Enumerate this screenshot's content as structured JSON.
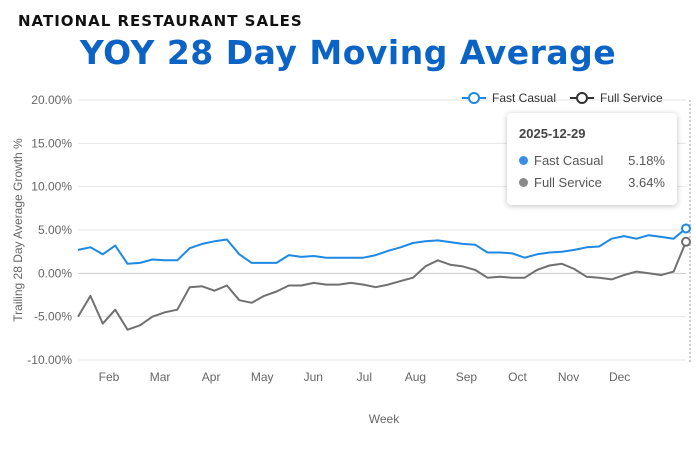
{
  "header": {
    "eyebrow": "NATIONAL RESTAURANT SALES",
    "title": "YOY 28 Day Moving Average"
  },
  "colors": {
    "fast_casual": "#1e88e5",
    "full_service": "#707070",
    "title": "#0b63c6",
    "gridline": "#e6e6e6"
  },
  "tooltip": {
    "date": "2025-12-29",
    "rows": [
      {
        "name": "Fast Casual",
        "value": "5.18%",
        "color": "#3b8ee6"
      },
      {
        "name": "Full Service",
        "value": "3.64%",
        "color": "#8a8a8a"
      }
    ]
  },
  "chart_data": {
    "type": "line",
    "xlabel": "Week",
    "ylabel": "Trailing 28 Day Average Growth %",
    "ylim": [
      -10,
      20
    ],
    "y_ticks": [
      20,
      15,
      10,
      5,
      0,
      -5,
      -10
    ],
    "y_tick_labels": [
      "20.00%",
      "15.00%",
      "10.00%",
      "5.00%",
      "0.00%",
      "-5.00%",
      "-10.00%"
    ],
    "month_labels": [
      "Feb",
      "Mar",
      "Apr",
      "May",
      "Jun",
      "Jul",
      "Aug",
      "Sep",
      "Oct",
      "Nov",
      "Dec"
    ],
    "legend_position": "top-right",
    "x_weeks_start": 0,
    "series": [
      {
        "name": "Fast Casual",
        "values": [
          2.7,
          3.0,
          2.2,
          3.2,
          1.1,
          1.2,
          1.6,
          1.5,
          1.5,
          2.9,
          3.4,
          3.7,
          3.9,
          2.2,
          1.2,
          1.2,
          1.2,
          2.1,
          1.9,
          2.0,
          1.8,
          1.8,
          1.8,
          1.8,
          2.1,
          2.6,
          3.0,
          3.5,
          3.7,
          3.8,
          3.6,
          3.4,
          3.3,
          2.4,
          2.4,
          2.3,
          1.8,
          2.2,
          2.4,
          2.5,
          2.7,
          3.0,
          3.1,
          4.0,
          4.3,
          4.0,
          4.4,
          4.2,
          4.0,
          5.18
        ]
      },
      {
        "name": "Full Service",
        "values": [
          -5.0,
          -2.6,
          -5.8,
          -4.2,
          -6.5,
          -6.0,
          -5.0,
          -4.5,
          -4.2,
          -1.6,
          -1.5,
          -2.0,
          -1.4,
          -3.1,
          -3.4,
          -2.6,
          -2.1,
          -1.4,
          -1.4,
          -1.1,
          -1.3,
          -1.3,
          -1.1,
          -1.3,
          -1.6,
          -1.3,
          -0.9,
          -0.5,
          0.8,
          1.5,
          1.0,
          0.8,
          0.4,
          -0.5,
          -0.4,
          -0.5,
          -0.5,
          0.4,
          0.9,
          1.1,
          0.5,
          -0.4,
          -0.5,
          -0.7,
          -0.2,
          0.2,
          0.0,
          -0.2,
          0.2,
          3.64
        ]
      }
    ]
  }
}
